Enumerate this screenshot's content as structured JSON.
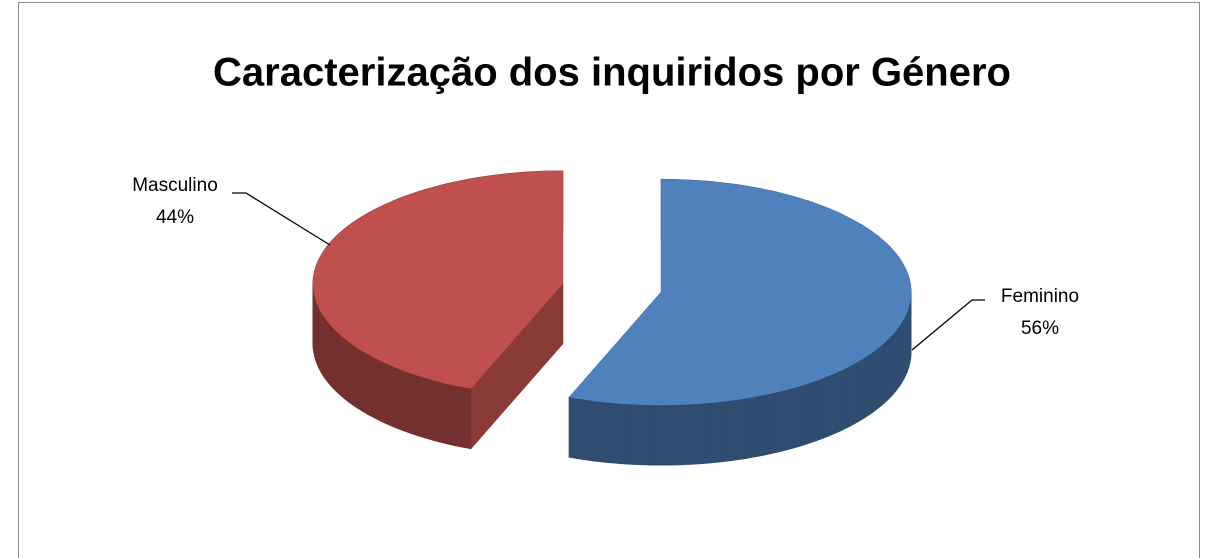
{
  "chart_data": {
    "type": "pie",
    "title": "Caracterização dos inquiridos por Género",
    "categories": [
      "Feminino",
      "Masculino"
    ],
    "values": [
      56,
      44
    ],
    "value_labels": [
      "56%",
      "44%"
    ],
    "colors": [
      "#4f81bd",
      "#c0504d"
    ]
  }
}
